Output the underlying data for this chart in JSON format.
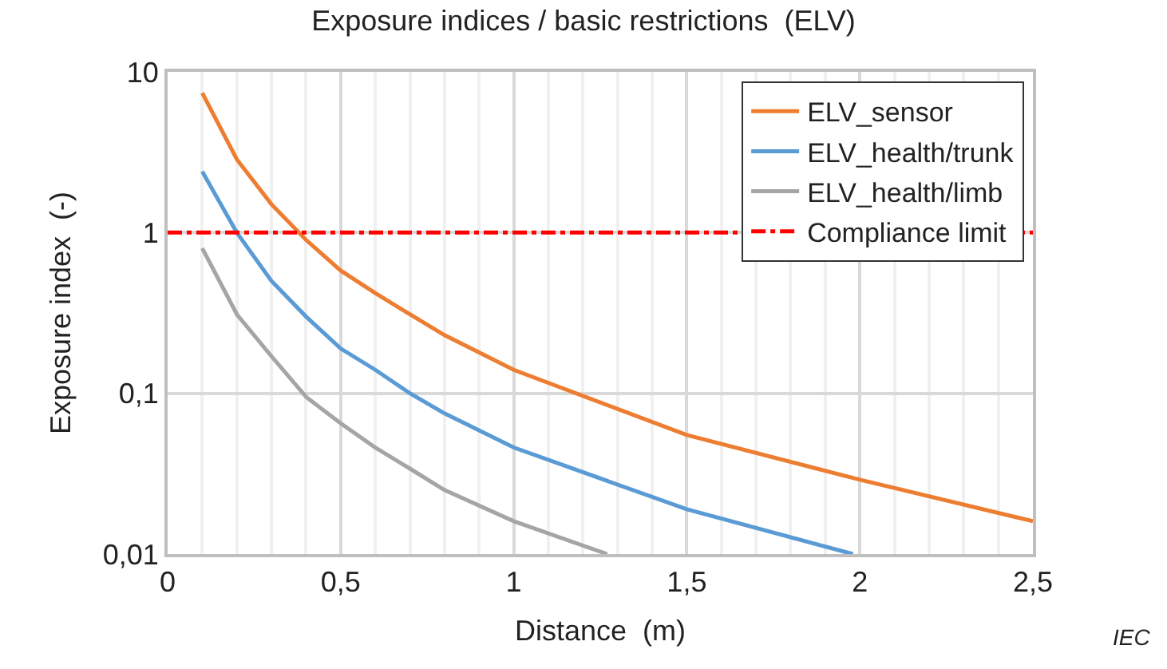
{
  "chart_data": {
    "type": "line",
    "title": "Exposure indices / basic restrictions  (ELV)",
    "xlabel": "Distance  (m)",
    "ylabel": "Exposure index  (-)",
    "log": "y",
    "xlim": [
      0,
      2.5
    ],
    "ylim": [
      0.01,
      10
    ],
    "xticks": [
      0,
      {
        "value": 0.5,
        "label": "0,5"
      },
      1,
      {
        "value": 1.5,
        "label": "1,5"
      },
      2,
      {
        "value": 2.5,
        "label": "2,5"
      }
    ],
    "yticks": [
      {
        "value": 0.01,
        "label": "0,01"
      },
      {
        "value": 0.1,
        "label": "0,1"
      },
      1,
      10
    ],
    "grid": true,
    "legend": "top right",
    "marker": "none",
    "series": [
      {
        "name": "ELV_sensor",
        "color": "#ed7d31",
        "x": [
          0.1,
          0.2,
          0.3,
          0.4,
          0.5,
          0.6,
          0.7,
          0.8,
          1.0,
          1.5,
          2.0,
          2.5
        ],
        "values": [
          7.4,
          2.85,
          1.5,
          0.9,
          0.58,
          0.42,
          0.31,
          0.23,
          0.14,
          0.055,
          0.029,
          0.016
        ]
      },
      {
        "name": "ELV_health/trunk",
        "color": "#5b9bd5",
        "x": [
          0.1,
          0.2,
          0.3,
          0.4,
          0.5,
          0.6,
          0.7,
          0.8,
          1.0,
          1.5,
          1.98
        ],
        "values": [
          2.4,
          1.0,
          0.5,
          0.3,
          0.19,
          0.14,
          0.1,
          0.075,
          0.046,
          0.019,
          0.01
        ]
      },
      {
        "name": "ELV_health/limb",
        "color": "#a5a5a5",
        "x": [
          0.1,
          0.2,
          0.3,
          0.4,
          0.5,
          0.6,
          0.7,
          0.8,
          1.0,
          1.27
        ],
        "values": [
          0.8,
          0.31,
          0.17,
          0.095,
          0.065,
          0.046,
          0.034,
          0.025,
          0.016,
          0.01
        ]
      },
      {
        "name": "Compliance limit",
        "color": "#ff0000",
        "line_style": "dashdot",
        "x": [
          0,
          2.5
        ],
        "values": [
          1,
          1
        ]
      }
    ],
    "annotations": [
      "IEC"
    ]
  }
}
